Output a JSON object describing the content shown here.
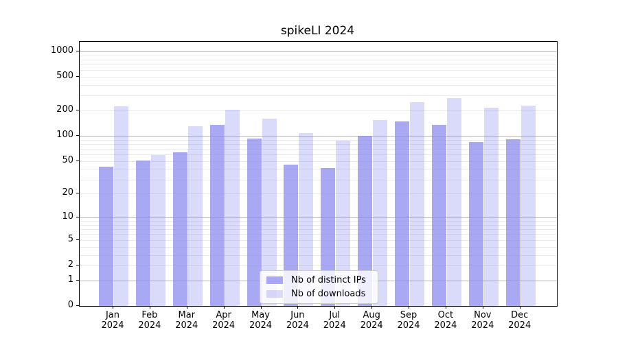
{
  "figure": {
    "title": "spikeLI 2024"
  },
  "chart_data": {
    "type": "bar",
    "title": "spikeLI 2024",
    "categories": [
      "Jan 2024",
      "Feb 2024",
      "Mar 2024",
      "Apr 2024",
      "May 2024",
      "Jun 2024",
      "Jul 2024",
      "Aug 2024",
      "Sep 2024",
      "Oct 2024",
      "Nov 2024",
      "Dec 2024"
    ],
    "x_tick_months": [
      "Jan",
      "Feb",
      "Mar",
      "Apr",
      "May",
      "Jun",
      "Jul",
      "Aug",
      "Sep",
      "Oct",
      "Nov",
      "Dec"
    ],
    "x_tick_year": "2024",
    "series": [
      {
        "name": "Nb of distinct IPs",
        "color": "rgba(136,136,238,0.72)",
        "values": [
          43,
          51,
          64,
          135,
          93,
          45,
          41,
          100,
          148,
          136,
          85,
          92
        ]
      },
      {
        "name": "Nb of downloads",
        "color": "rgba(136,136,238,0.31)",
        "values": [
          225,
          59,
          130,
          203,
          160,
          107,
          87,
          155,
          250,
          280,
          215,
          230
        ]
      }
    ],
    "y_axis": {
      "scale": "log(value+1)",
      "labeled_ticks": [
        0,
        1,
        2,
        5,
        10,
        20,
        50,
        100,
        200,
        500,
        1000
      ],
      "major_gridlines": [
        1,
        10,
        100,
        1000
      ],
      "minor_gridlines": [
        2,
        3,
        4,
        5,
        6,
        7,
        8,
        9,
        20,
        30,
        40,
        50,
        60,
        70,
        80,
        90,
        200,
        300,
        400,
        500,
        600,
        700,
        800,
        900
      ],
      "range": [
        0,
        1300
      ]
    },
    "legend": {
      "location": "lower center",
      "entries": [
        "Nb of distinct IPs",
        "Nb of downloads"
      ]
    },
    "grid": "on",
    "xlabel": "",
    "ylabel": ""
  },
  "colors": {
    "bar_dark": "rgba(136,136,238,0.72)",
    "bar_light": "rgba(136,136,238,0.31)",
    "grid_major": "#b4b4b4",
    "grid_minor": "#e9e9e9",
    "spine": "#000000",
    "background": "#ffffff"
  }
}
